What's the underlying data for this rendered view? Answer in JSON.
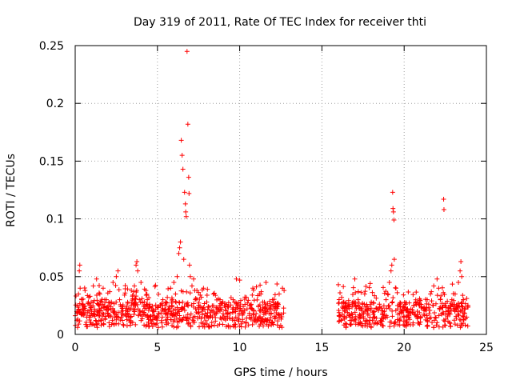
{
  "chart_data": {
    "type": "scatter",
    "title": "Day 319 of 2011, Rate Of TEC Index for receiver thti",
    "xlabel": "GPS time / hours",
    "ylabel": "ROTI / TECUs",
    "xlim": [
      0,
      25
    ],
    "ylim": [
      0,
      0.25
    ],
    "xticks": [
      0,
      5,
      10,
      15,
      20,
      25
    ],
    "xtick_labels": [
      "0",
      "5",
      "10",
      "15",
      "20",
      "25"
    ],
    "yticks": [
      0,
      0.05,
      0.1,
      0.15,
      0.2,
      0.25
    ],
    "ytick_labels": [
      "0",
      "0.05",
      "0.1",
      "0.15",
      "0.2",
      "0.25"
    ],
    "grid": true,
    "marker": "+",
    "color": "#ff0000",
    "series": [
      {
        "name": "ROTI",
        "note": "dense cloud of ~0.005-0.045 TECU/s from 0-12.7 h and 16-24 h; data gap 12.7-16 h",
        "points": [
          [
            0.1,
            0.012
          ],
          [
            0.15,
            0.025
          ],
          [
            0.2,
            0.035
          ],
          [
            0.25,
            0.055
          ],
          [
            0.28,
            0.06
          ],
          [
            0.3,
            0.04
          ],
          [
            0.35,
            0.018
          ],
          [
            0.4,
            0.03
          ],
          [
            0.5,
            0.022
          ],
          [
            0.6,
            0.038
          ],
          [
            0.7,
            0.015
          ],
          [
            0.8,
            0.028
          ],
          [
            0.9,
            0.033
          ],
          [
            1.0,
            0.02
          ],
          [
            1.1,
            0.042
          ],
          [
            1.2,
            0.017
          ],
          [
            1.3,
            0.048
          ],
          [
            1.4,
            0.026
          ],
          [
            1.5,
            0.035
          ],
          [
            1.6,
            0.012
          ],
          [
            1.7,
            0.04
          ],
          [
            1.8,
            0.023
          ],
          [
            1.9,
            0.03
          ],
          [
            2.0,
            0.018
          ],
          [
            2.1,
            0.037
          ],
          [
            2.2,
            0.028
          ],
          [
            2.3,
            0.045
          ],
          [
            2.4,
            0.02
          ],
          [
            2.5,
            0.05
          ],
          [
            2.6,
            0.055
          ],
          [
            2.7,
            0.03
          ],
          [
            2.8,
            0.015
          ],
          [
            2.9,
            0.024
          ],
          [
            3.0,
            0.034
          ],
          [
            3.1,
            0.018
          ],
          [
            3.2,
            0.027
          ],
          [
            3.3,
            0.012
          ],
          [
            3.4,
            0.022
          ],
          [
            3.5,
            0.031
          ],
          [
            3.6,
            0.042
          ],
          [
            3.7,
            0.06
          ],
          [
            3.75,
            0.063
          ],
          [
            3.8,
            0.055
          ],
          [
            3.9,
            0.03
          ],
          [
            4.0,
            0.045
          ],
          [
            4.1,
            0.02
          ],
          [
            4.2,
            0.028
          ],
          [
            4.3,
            0.038
          ],
          [
            4.4,
            0.015
          ],
          [
            4.5,
            0.024
          ],
          [
            4.6,
            0.012
          ],
          [
            4.7,
            0.02
          ],
          [
            4.8,
            0.016
          ],
          [
            4.9,
            0.022
          ],
          [
            5.0,
            0.014
          ],
          [
            5.1,
            0.018
          ],
          [
            5.2,
            0.025
          ],
          [
            5.3,
            0.015
          ],
          [
            5.4,
            0.02
          ],
          [
            5.5,
            0.028
          ],
          [
            5.6,
            0.032
          ],
          [
            5.7,
            0.024
          ],
          [
            5.8,
            0.04
          ],
          [
            5.9,
            0.03
          ],
          [
            6.0,
            0.045
          ],
          [
            6.1,
            0.035
          ],
          [
            6.2,
            0.05
          ],
          [
            6.3,
            0.07
          ],
          [
            6.35,
            0.075
          ],
          [
            6.4,
            0.08
          ],
          [
            6.45,
            0.168
          ],
          [
            6.5,
            0.155
          ],
          [
            6.55,
            0.143
          ],
          [
            6.6,
            0.065
          ],
          [
            6.65,
            0.123
          ],
          [
            6.7,
            0.113
          ],
          [
            6.72,
            0.106
          ],
          [
            6.75,
            0.102
          ],
          [
            6.8,
            0.245
          ],
          [
            6.85,
            0.182
          ],
          [
            6.9,
            0.136
          ],
          [
            6.92,
            0.122
          ],
          [
            6.95,
            0.06
          ],
          [
            7.0,
            0.05
          ],
          [
            7.1,
            0.042
          ],
          [
            7.2,
            0.048
          ],
          [
            7.3,
            0.03
          ],
          [
            7.4,
            0.038
          ],
          [
            7.5,
            0.025
          ],
          [
            7.6,
            0.034
          ],
          [
            7.7,
            0.02
          ],
          [
            7.8,
            0.04
          ],
          [
            7.9,
            0.018
          ],
          [
            8.0,
            0.028
          ],
          [
            8.2,
            0.015
          ],
          [
            8.4,
            0.035
          ],
          [
            8.6,
            0.022
          ],
          [
            8.8,
            0.03
          ],
          [
            9.0,
            0.018
          ],
          [
            9.2,
            0.026
          ],
          [
            9.4,
            0.014
          ],
          [
            9.6,
            0.03
          ],
          [
            9.8,
            0.048
          ],
          [
            10.0,
            0.047
          ],
          [
            10.2,
            0.02
          ],
          [
            10.4,
            0.032
          ],
          [
            10.6,
            0.025
          ],
          [
            10.8,
            0.04
          ],
          [
            11.0,
            0.018
          ],
          [
            11.2,
            0.035
          ],
          [
            11.4,
            0.028
          ],
          [
            11.6,
            0.045
          ],
          [
            11.8,
            0.022
          ],
          [
            12.0,
            0.03
          ],
          [
            12.2,
            0.015
          ],
          [
            12.4,
            0.035
          ],
          [
            12.6,
            0.04
          ],
          [
            12.7,
            0.038
          ],
          [
            16.0,
            0.043
          ],
          [
            16.1,
            0.036
          ],
          [
            16.2,
            0.032
          ],
          [
            16.3,
            0.028
          ],
          [
            16.4,
            0.02
          ],
          [
            16.5,
            0.015
          ],
          [
            16.6,
            0.025
          ],
          [
            16.8,
            0.018
          ],
          [
            17.0,
            0.048
          ],
          [
            17.2,
            0.03
          ],
          [
            17.4,
            0.022
          ],
          [
            17.6,
            0.035
          ],
          [
            17.8,
            0.018
          ],
          [
            18.0,
            0.028
          ],
          [
            18.2,
            0.015
          ],
          [
            18.4,
            0.022
          ],
          [
            18.6,
            0.012
          ],
          [
            18.8,
            0.02
          ],
          [
            19.0,
            0.035
          ],
          [
            19.1,
            0.045
          ],
          [
            19.2,
            0.055
          ],
          [
            19.25,
            0.06
          ],
          [
            19.3,
            0.123
          ],
          [
            19.32,
            0.109
          ],
          [
            19.35,
            0.106
          ],
          [
            19.38,
            0.099
          ],
          [
            19.4,
            0.065
          ],
          [
            19.5,
            0.04
          ],
          [
            19.6,
            0.025
          ],
          [
            19.8,
            0.02
          ],
          [
            20.0,
            0.015
          ],
          [
            20.2,
            0.022
          ],
          [
            20.4,
            0.018
          ],
          [
            20.6,
            0.025
          ],
          [
            20.8,
            0.02
          ],
          [
            21.0,
            0.015
          ],
          [
            21.2,
            0.022
          ],
          [
            21.4,
            0.03
          ],
          [
            21.6,
            0.035
          ],
          [
            21.8,
            0.042
          ],
          [
            22.0,
            0.048
          ],
          [
            22.1,
            0.04
          ],
          [
            22.2,
            0.03
          ],
          [
            22.4,
            0.117
          ],
          [
            22.42,
            0.108
          ],
          [
            22.5,
            0.025
          ],
          [
            22.7,
            0.018
          ],
          [
            22.9,
            0.03
          ],
          [
            23.1,
            0.035
          ],
          [
            23.3,
            0.045
          ],
          [
            23.4,
            0.055
          ],
          [
            23.45,
            0.063
          ],
          [
            23.5,
            0.05
          ],
          [
            23.6,
            0.03
          ],
          [
            23.7,
            0.022
          ],
          [
            23.8,
            0.015
          ]
        ]
      }
    ]
  }
}
